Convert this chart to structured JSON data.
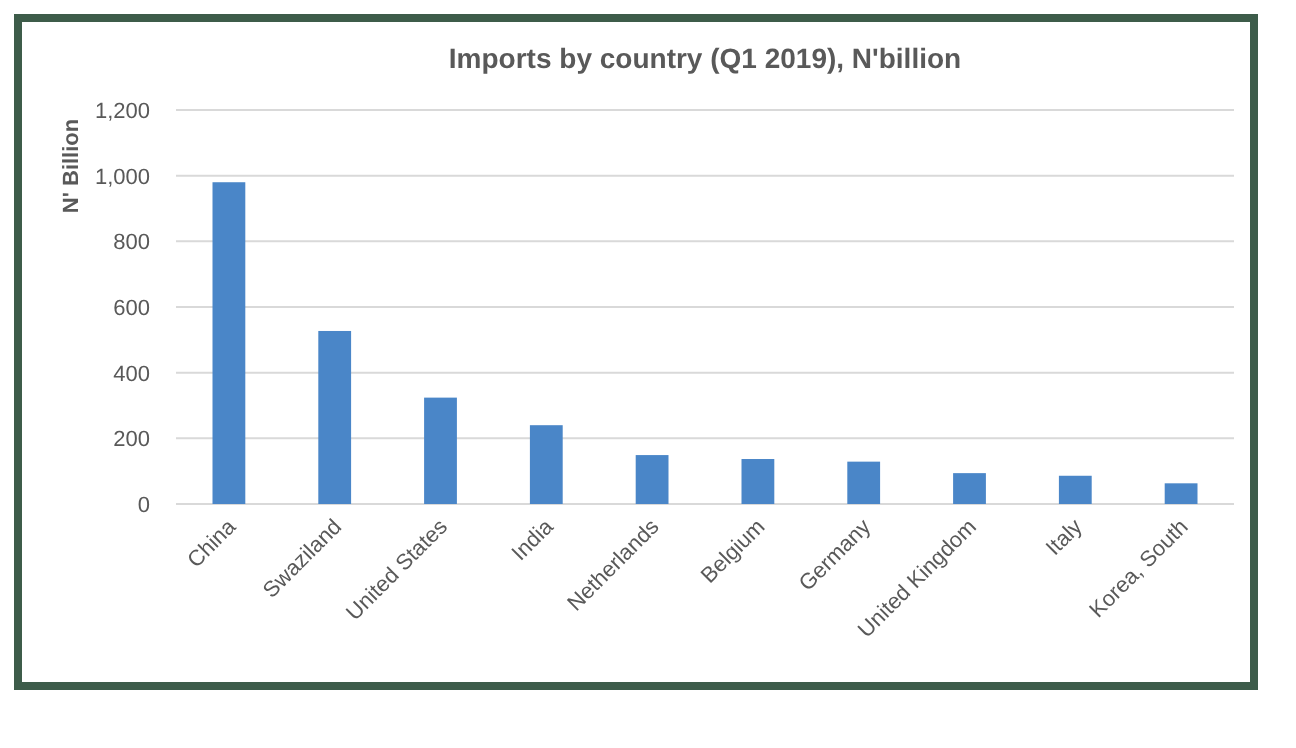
{
  "chart_data": {
    "type": "bar",
    "title": "Imports by country (Q1 2019), N'billion",
    "ylabel": "N' Billion",
    "categories": [
      "China",
      "Swaziland",
      "United States",
      "India",
      "Netherlands",
      "Belgium",
      "Germany",
      "United Kingdom",
      "Italy",
      "Korea, South"
    ],
    "values": [
      980,
      527,
      324,
      240,
      149,
      137,
      129,
      94,
      86,
      63
    ],
    "color": "#4a86c8",
    "ylim": [
      0,
      1200
    ],
    "yticks": [
      {
        "value": 0,
        "label": "0"
      },
      {
        "value": 200,
        "label": "200"
      },
      {
        "value": 400,
        "label": "400"
      },
      {
        "value": 600,
        "label": "600"
      },
      {
        "value": 800,
        "label": "800"
      },
      {
        "value": 1000,
        "label": "1,000"
      },
      {
        "value": 1200,
        "label": "1,200"
      }
    ],
    "grid": "y"
  }
}
